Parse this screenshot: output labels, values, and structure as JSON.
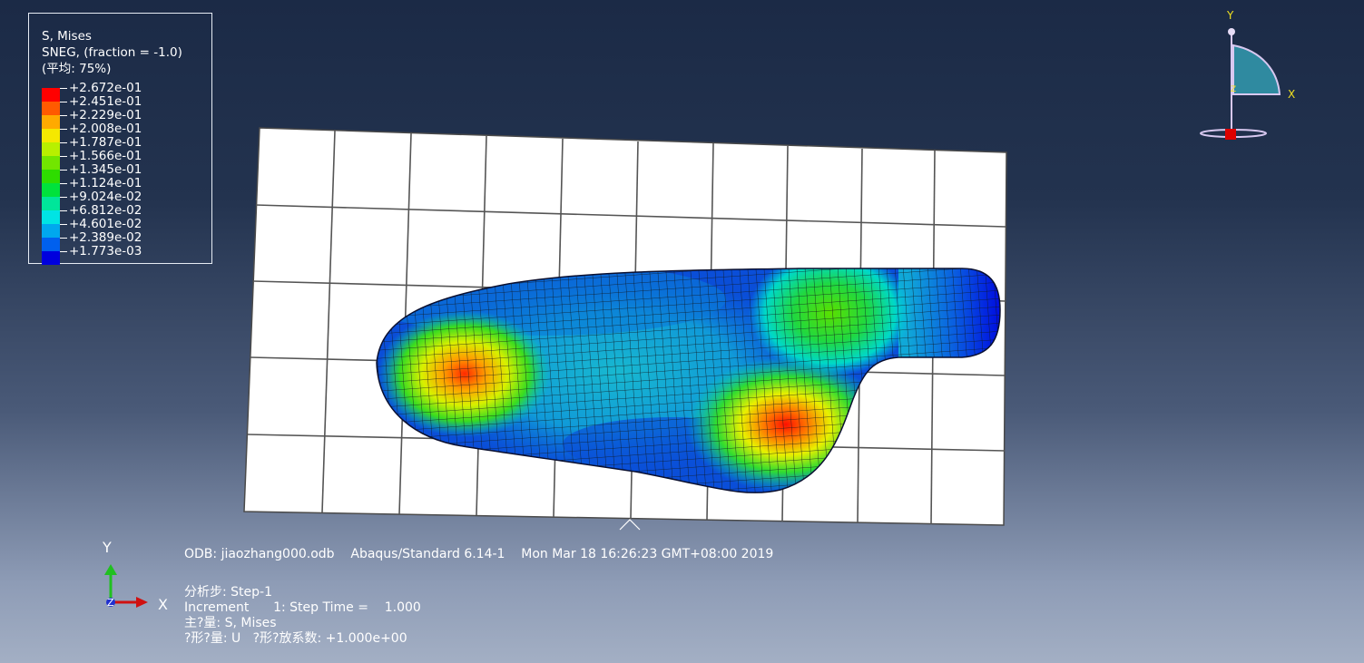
{
  "legend": {
    "title": "S, Mises",
    "line2": "SNEG, (fraction = -1.0)",
    "line3": "(平均: 75%)",
    "entries": [
      {
        "value": "+2.672e-01",
        "color": "#ff0000"
      },
      {
        "value": "+2.451e-01",
        "color": "#ff5a00"
      },
      {
        "value": "+2.229e-01",
        "color": "#ffaa00"
      },
      {
        "value": "+2.008e-01",
        "color": "#f5e800"
      },
      {
        "value": "+1.787e-01",
        "color": "#b8f000"
      },
      {
        "value": "+1.566e-01",
        "color": "#72e600"
      },
      {
        "value": "+1.345e-01",
        "color": "#2edc00"
      },
      {
        "value": "+1.124e-01",
        "color": "#00e23c"
      },
      {
        "value": "+9.024e-02",
        "color": "#00e69a"
      },
      {
        "value": "+6.812e-02",
        "color": "#00e4e4"
      },
      {
        "value": "+4.601e-02",
        "color": "#00a8ee"
      },
      {
        "value": "+2.389e-02",
        "color": "#0060ee"
      },
      {
        "value": "+1.773e-03",
        "color": "#0000dd"
      }
    ]
  },
  "info": {
    "odb_line": "ODB: jiaozhang000.odb    Abaqus/Standard 6.14-1    Mon Mar 18 16:26:23 GMT+08:00 2019",
    "step_line": "分析步: Step-1",
    "increment_line": "Increment      1: Step Time =    1.000",
    "primary_line": "主?量: S, Mises",
    "deformed_line": "?形?量: U   ?形?放系数: +1.000e+00"
  },
  "triad": {
    "x_label": "X",
    "y_label": "Y",
    "z_label": "Z"
  },
  "view_cube": {
    "x_label": "X",
    "y_label": "Y",
    "z_label": "Z"
  }
}
